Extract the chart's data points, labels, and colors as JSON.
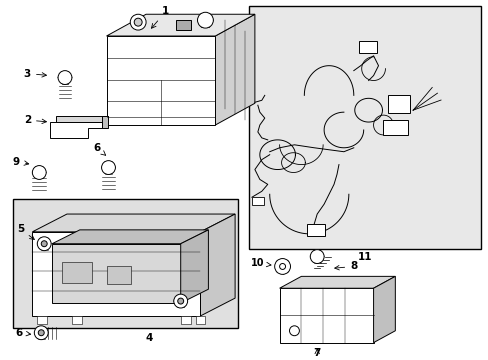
{
  "background_color": "#ffffff",
  "line_color": "#000000",
  "box11_bg": "#e8e8e8",
  "box4_bg": "#e0e0e0",
  "figsize": [
    4.89,
    3.6
  ],
  "dpi": 100,
  "label_fontsize": 7.5,
  "label_fontsize_sm": 7.0
}
